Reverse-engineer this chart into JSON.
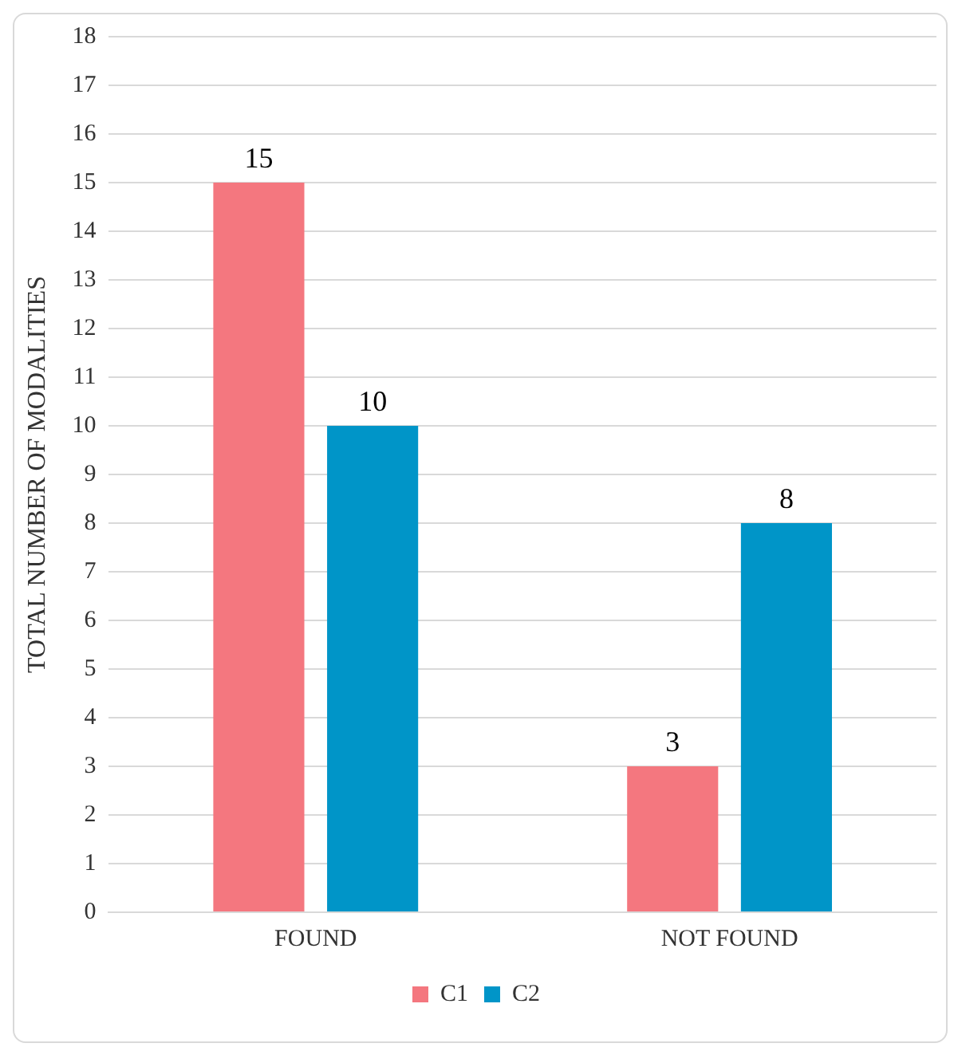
{
  "chart_data": {
    "type": "bar",
    "ylabel": "TOTAL NUMBER OF MODALITIES",
    "categories": [
      "FOUND",
      "NOT FOUND"
    ],
    "series": [
      {
        "name": "C1",
        "color": "#f4777f",
        "values": [
          15,
          3
        ]
      },
      {
        "name": "C2",
        "color": "#0095c8",
        "values": [
          10,
          8
        ]
      }
    ],
    "ylim": [
      0,
      18
    ],
    "yticks": [
      0,
      1,
      2,
      3,
      4,
      5,
      6,
      7,
      8,
      9,
      10,
      11,
      12,
      13,
      14,
      15,
      16,
      17,
      18
    ],
    "grid": "y",
    "legend": "bottom",
    "data_labels": true
  }
}
